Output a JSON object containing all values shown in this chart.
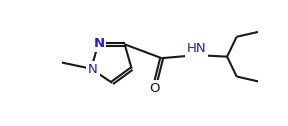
{
  "background_color": "#ffffff",
  "line_color": "#1a1a1a",
  "bond_width": 1.5,
  "figsize": [
    2.88,
    1.26
  ],
  "dpi": 100,
  "font_size": 9.5,
  "xlim": [
    0,
    288
  ],
  "ylim": [
    0,
    126
  ],
  "N_color": "#1f1fbf",
  "O_color": "#1a1a1a",
  "C_color": "#1a1a1a"
}
